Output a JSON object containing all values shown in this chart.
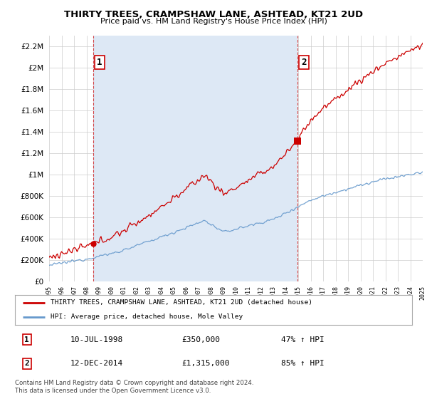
{
  "title": "THIRTY TREES, CRAMPSHAW LANE, ASHTEAD, KT21 2UD",
  "subtitle": "Price paid vs. HM Land Registry's House Price Index (HPI)",
  "ylim": [
    0,
    2300000
  ],
  "yticks": [
    0,
    200000,
    400000,
    600000,
    800000,
    1000000,
    1200000,
    1400000,
    1600000,
    1800000,
    2000000,
    2200000
  ],
  "xmin": 1995,
  "xmax": 2025,
  "sale1_year": 1998.53,
  "sale1_price": 350000,
  "sale1_label": "1",
  "sale2_year": 2014.95,
  "sale2_price": 1315000,
  "sale2_label": "2",
  "sale1_date": "10-JUL-1998",
  "sale1_amount": "£350,000",
  "sale1_hpi": "47% ↑ HPI",
  "sale2_date": "12-DEC-2014",
  "sale2_amount": "£1,315,000",
  "sale2_hpi": "85% ↑ HPI",
  "legend_line1": "THIRTY TREES, CRAMPSHAW LANE, ASHTEAD, KT21 2UD (detached house)",
  "legend_line2": "HPI: Average price, detached house, Mole Valley",
  "footnote": "Contains HM Land Registry data © Crown copyright and database right 2024.\nThis data is licensed under the Open Government Licence v3.0.",
  "red_color": "#cc0000",
  "blue_color": "#6699cc",
  "fill_color": "#dde8f5",
  "grid_color": "#cccccc",
  "background_color": "#ffffff"
}
